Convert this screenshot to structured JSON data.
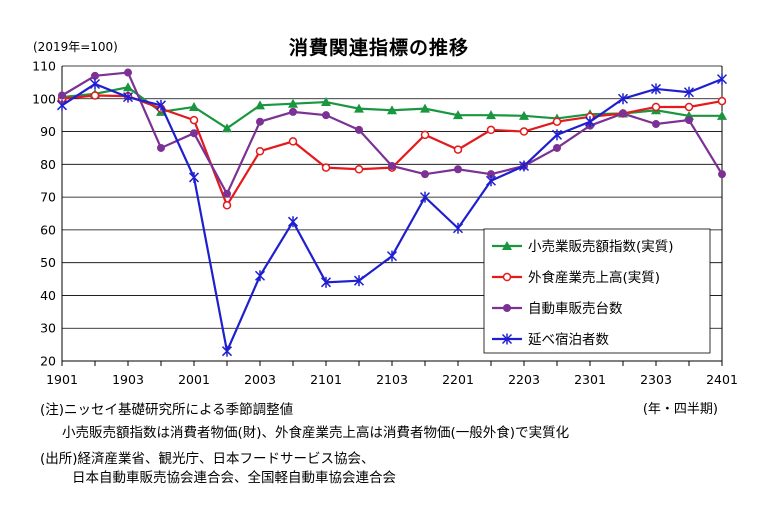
{
  "title": "消費関連指標の推移",
  "unit_label": "(2019年=100)",
  "period_note": "(年・四半期)",
  "notes": [
    "(注)ニッセイ基礎研究所による季節調整値",
    "小売販売額指数は消費者物価(財)、外食産業売上高は消費者物価(一般外食)で実質化",
    "(出所)経済産業省、観光庁、日本フードサービス協会、",
    "日本自動車販売協会連合会、全国軽自動車協会連合会"
  ],
  "colors": {
    "retail": "#1a9641",
    "restaurant": "#e41a1c",
    "auto": "#7b3294",
    "lodging": "#1f1fd0",
    "grid": "#000000"
  },
  "chart_data": {
    "type": "line",
    "x": [
      "1901",
      "1902",
      "1903",
      "1904",
      "2001",
      "2002",
      "2003",
      "2004",
      "2101",
      "2102",
      "2103",
      "2104",
      "2201",
      "2202",
      "2203",
      "2204",
      "2301",
      "2302",
      "2303",
      "2304",
      "2401"
    ],
    "x_tick_labels": [
      "1901",
      "1903",
      "2001",
      "2003",
      "2101",
      "2103",
      "2201",
      "2203",
      "2301",
      "2303",
      "2401"
    ],
    "ylim": [
      20,
      110
    ],
    "y_ticks": [
      20,
      30,
      40,
      50,
      60,
      70,
      80,
      90,
      100,
      110
    ],
    "grid": true,
    "legend_position": "bottom-right",
    "series": [
      {
        "name": "小売業販売額指数(実質)",
        "marker": "triangle",
        "color": "#1a9641",
        "values": [
          100.5,
          101.5,
          103.5,
          96,
          97.5,
          91,
          98,
          98.5,
          99,
          97,
          96.5,
          97,
          95,
          95,
          94.8,
          94,
          95.3,
          95.5,
          96.5,
          94.8,
          94.8
        ]
      },
      {
        "name": "外食産業売上高(実質)",
        "marker": "open-circle",
        "color": "#e41a1c",
        "values": [
          100,
          101,
          100.8,
          97,
          93.5,
          67.5,
          84,
          87,
          79,
          78.5,
          79,
          89,
          84.5,
          90.5,
          90,
          93,
          94.5,
          95.5,
          97.5,
          97.5,
          99.3
        ]
      },
      {
        "name": "自動車販売台数",
        "marker": "filled-circle",
        "color": "#7b3294",
        "values": [
          101,
          107,
          108,
          85,
          89.5,
          71,
          93,
          96,
          95,
          90.5,
          79.5,
          77,
          78.5,
          77,
          79.5,
          85,
          91.8,
          95.5,
          92.3,
          93.5,
          77
        ]
      },
      {
        "name": "延べ宿泊者数",
        "marker": "star",
        "color": "#1f1fd0",
        "values": [
          98,
          104.5,
          100.5,
          98,
          76,
          23,
          46,
          62.5,
          44,
          44.5,
          52,
          70,
          60.5,
          75,
          79.5,
          89,
          93,
          100,
          103,
          102,
          106
        ]
      }
    ]
  }
}
